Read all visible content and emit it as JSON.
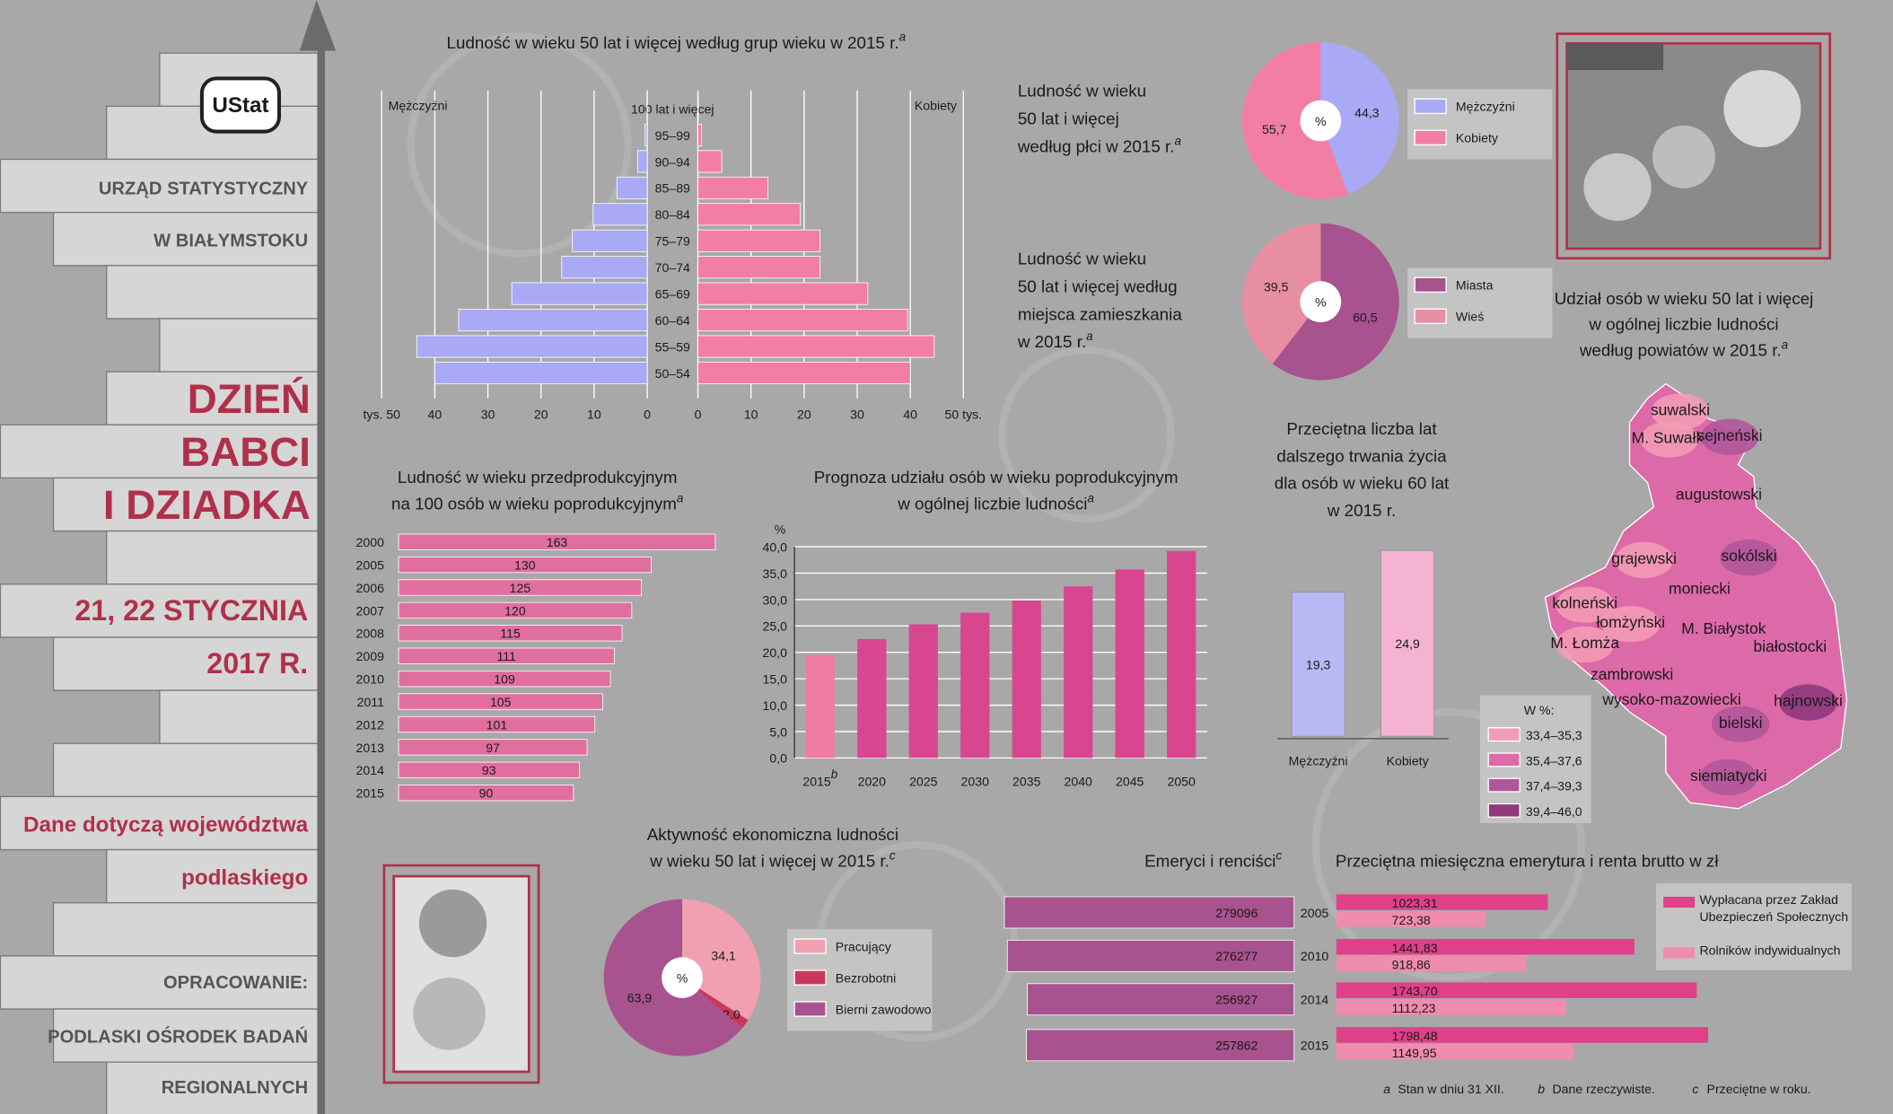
{
  "sidebar": {
    "logo": "UStat",
    "office": [
      "URZĄD STATYSTYCZNY",
      "W BIAŁYMSTOKU"
    ],
    "event": [
      "DZIEŃ",
      "BABCI",
      "I DZIADKA"
    ],
    "date": [
      "21, 22 STYCZNIA",
      "2017 R."
    ],
    "scope": [
      "Dane dotyczą województwa",
      "podlaskiego"
    ],
    "author": [
      "OPRACOWANIE:",
      "PODLASKI OŚRODEK BADAŃ",
      "REGIONALNYCH"
    ]
  },
  "chart_data": [
    {
      "type": "pyramid",
      "title": [
        "Ludność w wieku 50 lat i więcej według grup wieku w 2015 r."
      ],
      "note": "a",
      "categories": [
        "100 lat i więcej",
        "95–99",
        "90–94",
        "85–89",
        "80–84",
        "75–79",
        "70–74",
        "65–69",
        "60–64",
        "55–59",
        "50–54"
      ],
      "series": [
        {
          "name": "Mężczyźni",
          "color": "#a9a9f5",
          "values": [
            0.05,
            0.4,
            1.8,
            5.7,
            10.2,
            14.1,
            16.1,
            25.5,
            35.5,
            43.4,
            40
          ]
        },
        {
          "name": "Kobiety",
          "color": "#f27fa3",
          "values": [
            0.1,
            0.7,
            4.5,
            13.2,
            19.3,
            23,
            23,
            32,
            39.5,
            44.5,
            40
          ]
        }
      ],
      "xlim": [
        0,
        50
      ],
      "xticks": [
        {
          "value": 50,
          "label": "tys. 50"
        },
        40,
        30,
        20,
        10,
        0
      ],
      "x2ticks": [
        0,
        10,
        20,
        30,
        40,
        {
          "value": 50,
          "label": "50 tys."
        }
      ],
      "grid": true
    },
    {
      "type": "pie",
      "title": [
        "Ludność w wieku",
        "50 lat i więcej",
        "według płci w 2015 r."
      ],
      "note": "a",
      "center_label": "%",
      "labels": [
        "Mężczyźni",
        "Kobiety"
      ],
      "values": [
        44.3,
        55.7
      ],
      "value_labels": [
        "44,3",
        "55,7"
      ],
      "colors": [
        "#a9a9f5",
        "#f27fa3"
      ]
    },
    {
      "type": "pie",
      "title": [
        "Ludność w wieku",
        "50 lat i więcej według",
        "miejsca zamieszkania",
        "w 2015 r."
      ],
      "note": "a",
      "center_label": "%",
      "labels": [
        "Miasta",
        "Wieś"
      ],
      "values": [
        60.5,
        39.5
      ],
      "value_labels": [
        "60,5",
        "39,5"
      ],
      "colors": [
        "#a8528f",
        "#e88ea3"
      ]
    },
    {
      "type": "hbar",
      "title": [
        "Ludność w wieku przedprodukcyjnym",
        "na 100 osób w wieku poprodukcyjnym"
      ],
      "note": "a",
      "categories": [
        "2000",
        "2005",
        "2006",
        "2007",
        "2008",
        "2009",
        "2010",
        "2011",
        "2012",
        "2013",
        "2014",
        "2015"
      ],
      "values": [
        163,
        130,
        125,
        120,
        115,
        111,
        109,
        105,
        101,
        97,
        93,
        90
      ],
      "color": "#e06fa0"
    },
    {
      "type": "column",
      "title": [
        "Prognoza udziału osób w wieku poprodukcyjnym",
        "w ogólnej liczbie ludności"
      ],
      "note": "a",
      "y_label": "%",
      "categories": [
        "2015",
        "2020",
        "2025",
        "2030",
        "2035",
        "2040",
        "2045",
        "2050"
      ],
      "category_note": "b",
      "values": [
        19.5,
        22.5,
        25.3,
        27.5,
        29.8,
        32.5,
        35.7,
        39.2
      ],
      "colors": [
        "#f27ba6",
        "#d94690"
      ],
      "ylim": [
        0,
        40
      ],
      "yticks": [
        {
          "value": 0,
          "label": "0,0"
        },
        {
          "value": 5,
          "label": "5,0"
        },
        {
          "value": 10,
          "label": "10,0"
        },
        {
          "value": 15,
          "label": "15,0"
        },
        {
          "value": 20,
          "label": "20,0"
        },
        {
          "value": 25,
          "label": "25,0"
        },
        {
          "value": 30,
          "label": "30,0"
        },
        {
          "value": 35,
          "label": "35,0"
        },
        {
          "value": 40,
          "label": "40,0"
        }
      ],
      "grid": true
    },
    {
      "type": "vbar",
      "title": [
        "Przeciętna liczba lat",
        "dalszego trwania życia",
        "dla osób w wieku 60 lat",
        "w 2015 r."
      ],
      "categories": [
        "Mężczyźni",
        "Kobiety"
      ],
      "values": [
        19.3,
        24.9
      ],
      "value_labels": [
        "19,3",
        "24,9"
      ],
      "colors": [
        "#b8b8f5",
        "#f5b3d2"
      ]
    },
    {
      "type": "pie",
      "title": [
        "Aktywność ekonomiczna ludności",
        "w wieku 50 lat i więcej w 2015 r."
      ],
      "note": "c",
      "center_label": "%",
      "labels": [
        "Pracujący",
        "Bezrobotni",
        "Bierni zawodowo"
      ],
      "values": [
        34.1,
        2.0,
        63.9
      ],
      "value_labels": [
        "34,1",
        "2,0",
        "63,9"
      ],
      "colors": [
        "#f0a0b0",
        "#c8385a",
        "#a8528f"
      ]
    },
    {
      "type": "map",
      "title": [
        "Udział osób w wieku 50 lat i więcej",
        "w ogólnej liczbie ludności",
        "według powiatów w 2015 r."
      ],
      "note": "a",
      "legend_title": "W %:",
      "classes": [
        {
          "label": "33,4–35,3",
          "color": "#f29bb4"
        },
        {
          "label": "35,4–37,6",
          "color": "#dd6aa8"
        },
        {
          "label": "37,4–39,3",
          "color": "#b0569a"
        },
        {
          "label": "39,4–46,0",
          "color": "#8e3a7c"
        }
      ],
      "regions": [
        {
          "name": "suwalski",
          "color": "#f29bb4"
        },
        {
          "name": "M. Suwałki",
          "color": "#f29bb4"
        },
        {
          "name": "sejneński",
          "color": "#b0569a"
        },
        {
          "name": "augustowski",
          "color": "#dd6aa8"
        },
        {
          "name": "grajewski",
          "color": "#f29bb4"
        },
        {
          "name": "sokólski",
          "color": "#b0569a"
        },
        {
          "name": "kolneński",
          "color": "#f29bb4"
        },
        {
          "name": "moniecki",
          "color": "#dd6aa8"
        },
        {
          "name": "łomżyński",
          "color": "#f29bb4"
        },
        {
          "name": "M. Białystok",
          "color": "#dd6aa8"
        },
        {
          "name": "M. Łomża",
          "color": "#f29bb4"
        },
        {
          "name": "białostocki",
          "color": "#dd6aa8"
        },
        {
          "name": "zambrowski",
          "color": "#dd6aa8"
        },
        {
          "name": "wysoko-mazowiecki",
          "color": "#dd6aa8"
        },
        {
          "name": "hajnowski",
          "color": "#8e3a7c"
        },
        {
          "name": "bielski",
          "color": "#b0569a"
        },
        {
          "name": "siemiatycki",
          "color": "#b0569a"
        }
      ]
    },
    {
      "type": "rbar",
      "title": [
        "Emeryci i renciści"
      ],
      "note": "c",
      "categories": [
        "2005",
        "2010",
        "2014",
        "2015"
      ],
      "values": [
        279096,
        276277,
        256927,
        257862
      ],
      "color": "#a8528f"
    },
    {
      "type": "groupbar",
      "title": [
        "Przeciętna miesięczna emerytura i renta brutto w zł"
      ],
      "categories": [
        "2005",
        "2010",
        "2014",
        "2015"
      ],
      "series": [
        {
          "name": "Wypłacana przez Zakład Ubezpieczeń Społecznych",
          "color": "#e0408a",
          "values": [
            1023.31,
            1441.83,
            1743.7,
            1798.48
          ],
          "value_labels": [
            "1023,31",
            "1441,83",
            "1743,70",
            "1798,48"
          ]
        },
        {
          "name": "Rolników indywidualnych",
          "color": "#f08cb0",
          "values": [
            723.38,
            918.86,
            1112.23,
            1149.95
          ],
          "value_labels": [
            "723,38",
            "918,86",
            "1112,23",
            "1149,95"
          ]
        }
      ]
    }
  ],
  "footnotes": [
    {
      "mark": "a",
      "text": "Stan w dniu 31 XII."
    },
    {
      "mark": "b",
      "text": "Dane rzeczywiste."
    },
    {
      "mark": "c",
      "text": "Przeciętne w roku."
    }
  ]
}
